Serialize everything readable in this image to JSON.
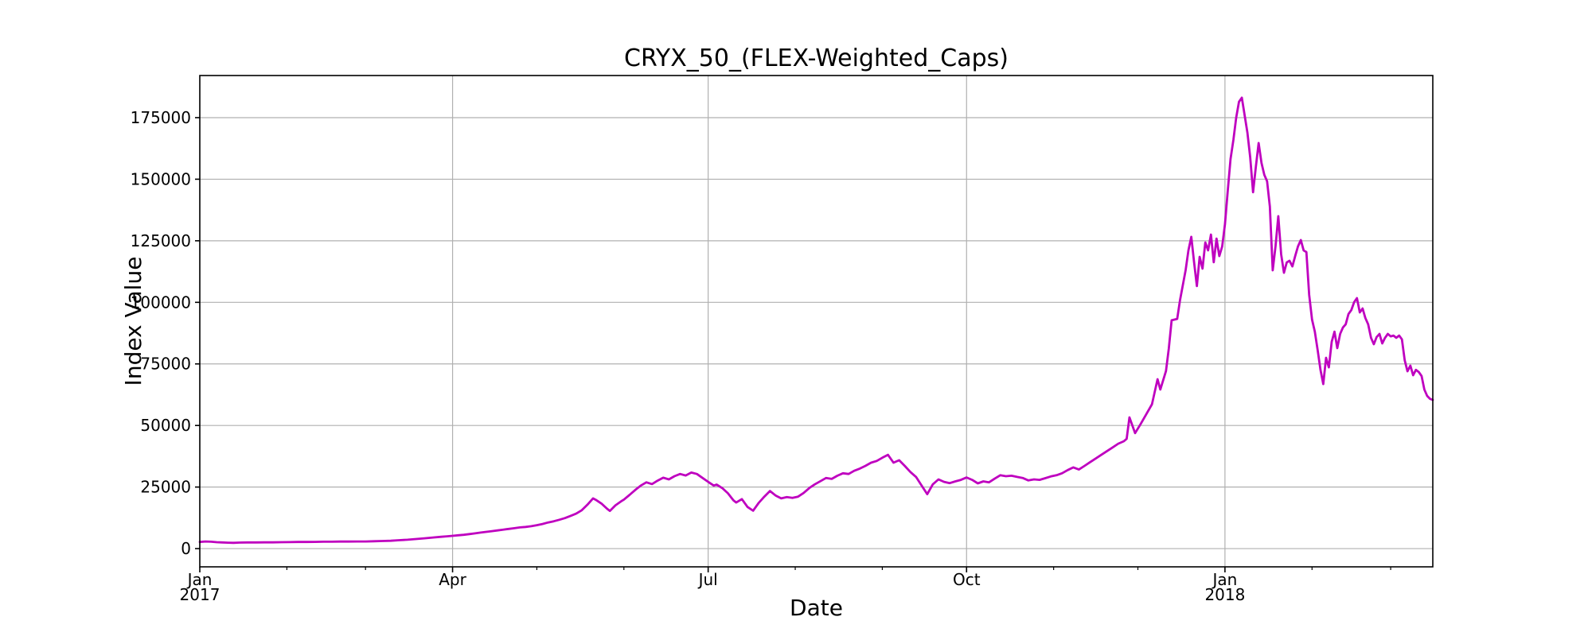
{
  "figure": {
    "title": "CRYX_50_(FLEX-Weighted_Caps)",
    "xlabel": "Date",
    "ylabel": "Index Value"
  },
  "chart_data": {
    "type": "line",
    "title": "CRYX_50_(FLEX-Weighted_Caps)",
    "xlabel": "Date",
    "ylabel": "Index Value",
    "grid": true,
    "legend": "none",
    "background": "#ffffff",
    "grid_color": "#b0b0b0",
    "spine_color": "#000000",
    "x_unit": "days since 2017-01-01",
    "xlim": [
      0,
      439
    ],
    "ylim": [
      -7400,
      192100
    ],
    "y_ticks": [
      {
        "value": 0,
        "label": "0"
      },
      {
        "value": 25000,
        "label": "25000"
      },
      {
        "value": 50000,
        "label": "50000"
      },
      {
        "value": 75000,
        "label": "75000"
      },
      {
        "value": 100000,
        "label": "100000"
      },
      {
        "value": 125000,
        "label": "125000"
      },
      {
        "value": 150000,
        "label": "150000"
      },
      {
        "value": 175000,
        "label": "175000"
      }
    ],
    "x_major_ticks": [
      {
        "day": 0,
        "label": "Jan",
        "sublabel": "2017"
      },
      {
        "day": 90,
        "label": "Apr",
        "sublabel": ""
      },
      {
        "day": 181,
        "label": "Jul",
        "sublabel": ""
      },
      {
        "day": 273,
        "label": "Oct",
        "sublabel": ""
      },
      {
        "day": 365,
        "label": "Jan",
        "sublabel": "2018"
      }
    ],
    "x_minor_ticks": [
      31,
      59,
      120,
      151,
      212,
      243,
      304,
      334,
      396,
      424
    ],
    "series": [
      {
        "name": "CRYX_50",
        "color": "#bf00bf",
        "points": [
          [
            0,
            2700
          ],
          [
            2,
            2900
          ],
          [
            4,
            2800
          ],
          [
            6,
            2600
          ],
          [
            8,
            2500
          ],
          [
            10,
            2400
          ],
          [
            12,
            2350
          ],
          [
            14,
            2450
          ],
          [
            17,
            2500
          ],
          [
            20,
            2500
          ],
          [
            23,
            2550
          ],
          [
            26,
            2550
          ],
          [
            29,
            2600
          ],
          [
            32,
            2650
          ],
          [
            35,
            2700
          ],
          [
            38,
            2700
          ],
          [
            41,
            2750
          ],
          [
            44,
            2800
          ],
          [
            47,
            2800
          ],
          [
            50,
            2850
          ],
          [
            53,
            2850
          ],
          [
            56,
            2900
          ],
          [
            59,
            2900
          ],
          [
            62,
            3000
          ],
          [
            65,
            3100
          ],
          [
            68,
            3200
          ],
          [
            71,
            3400
          ],
          [
            74,
            3600
          ],
          [
            77,
            3900
          ],
          [
            80,
            4200
          ],
          [
            83,
            4500
          ],
          [
            86,
            4800
          ],
          [
            88,
            5000
          ],
          [
            90,
            5200
          ],
          [
            92,
            5400
          ],
          [
            94,
            5600
          ],
          [
            96,
            5900
          ],
          [
            98,
            6200
          ],
          [
            100,
            6500
          ],
          [
            102,
            6800
          ],
          [
            104,
            7100
          ],
          [
            106,
            7400
          ],
          [
            108,
            7700
          ],
          [
            110,
            8000
          ],
          [
            112,
            8300
          ],
          [
            114,
            8600
          ],
          [
            116,
            8800
          ],
          [
            118,
            9100
          ],
          [
            120,
            9500
          ],
          [
            122,
            10000
          ],
          [
            124,
            10600
          ],
          [
            126,
            11100
          ],
          [
            128,
            11700
          ],
          [
            130,
            12400
          ],
          [
            132,
            13300
          ],
          [
            134,
            14200
          ],
          [
            136,
            15600
          ],
          [
            138,
            17800
          ],
          [
            140,
            20400
          ],
          [
            141,
            19800
          ],
          [
            143,
            18300
          ],
          [
            145,
            16200
          ],
          [
            146,
            15300
          ],
          [
            148,
            17600
          ],
          [
            150,
            19200
          ],
          [
            151,
            19900
          ],
          [
            153,
            21800
          ],
          [
            155,
            23800
          ],
          [
            157,
            25600
          ],
          [
            159,
            26900
          ],
          [
            161,
            26200
          ],
          [
            163,
            27600
          ],
          [
            165,
            28800
          ],
          [
            167,
            28100
          ],
          [
            169,
            29400
          ],
          [
            171,
            30300
          ],
          [
            173,
            29700
          ],
          [
            175,
            30900
          ],
          [
            177,
            30300
          ],
          [
            179,
            28700
          ],
          [
            181,
            27100
          ],
          [
            183,
            25600
          ],
          [
            184,
            26000
          ],
          [
            186,
            24600
          ],
          [
            188,
            22500
          ],
          [
            190,
            19600
          ],
          [
            191,
            18700
          ],
          [
            193,
            20100
          ],
          [
            195,
            16900
          ],
          [
            197,
            15400
          ],
          [
            199,
            18600
          ],
          [
            201,
            21100
          ],
          [
            203,
            23400
          ],
          [
            205,
            21600
          ],
          [
            207,
            20400
          ],
          [
            209,
            20900
          ],
          [
            211,
            20600
          ],
          [
            213,
            21100
          ],
          [
            215,
            22600
          ],
          [
            217,
            24600
          ],
          [
            219,
            26100
          ],
          [
            221,
            27400
          ],
          [
            223,
            28700
          ],
          [
            225,
            28300
          ],
          [
            227,
            29600
          ],
          [
            229,
            30600
          ],
          [
            231,
            30300
          ],
          [
            233,
            31600
          ],
          [
            235,
            32500
          ],
          [
            237,
            33600
          ],
          [
            239,
            34900
          ],
          [
            241,
            35600
          ],
          [
            243,
            36900
          ],
          [
            245,
            38100
          ],
          [
            247,
            34900
          ],
          [
            249,
            35900
          ],
          [
            251,
            33600
          ],
          [
            253,
            31100
          ],
          [
            255,
            29100
          ],
          [
            257,
            25600
          ],
          [
            259,
            22100
          ],
          [
            261,
            26100
          ],
          [
            263,
            28100
          ],
          [
            265,
            27100
          ],
          [
            267,
            26600
          ],
          [
            269,
            27300
          ],
          [
            271,
            27900
          ],
          [
            273,
            28900
          ],
          [
            275,
            27900
          ],
          [
            277,
            26500
          ],
          [
            279,
            27300
          ],
          [
            281,
            26900
          ],
          [
            283,
            28400
          ],
          [
            285,
            29800
          ],
          [
            287,
            29400
          ],
          [
            289,
            29600
          ],
          [
            291,
            29100
          ],
          [
            293,
            28700
          ],
          [
            295,
            27700
          ],
          [
            297,
            28100
          ],
          [
            299,
            27900
          ],
          [
            301,
            28600
          ],
          [
            303,
            29300
          ],
          [
            305,
            29800
          ],
          [
            307,
            30600
          ],
          [
            309,
            31900
          ],
          [
            311,
            33000
          ],
          [
            313,
            32100
          ],
          [
            315,
            33600
          ],
          [
            317,
            35100
          ],
          [
            319,
            36600
          ],
          [
            321,
            38100
          ],
          [
            323,
            39600
          ],
          [
            325,
            41100
          ],
          [
            327,
            42600
          ],
          [
            329,
            43600
          ],
          [
            330,
            44600
          ],
          [
            331,
            53300
          ],
          [
            333,
            46900
          ],
          [
            335,
            50600
          ],
          [
            337,
            54600
          ],
          [
            339,
            58600
          ],
          [
            341,
            68800
          ],
          [
            342,
            64600
          ],
          [
            344,
            72100
          ],
          [
            345,
            81100
          ],
          [
            346,
            92700
          ],
          [
            348,
            93300
          ],
          [
            349,
            100800
          ],
          [
            351,
            113100
          ],
          [
            352,
            121100
          ],
          [
            353,
            126600
          ],
          [
            354,
            116300
          ],
          [
            355,
            106600
          ],
          [
            356,
            118500
          ],
          [
            357,
            113700
          ],
          [
            358,
            124300
          ],
          [
            359,
            121100
          ],
          [
            360,
            127500
          ],
          [
            361,
            116300
          ],
          [
            362,
            125900
          ],
          [
            363,
            118800
          ],
          [
            364,
            122700
          ],
          [
            365,
            131700
          ],
          [
            366,
            145300
          ],
          [
            367,
            158200
          ],
          [
            368,
            166000
          ],
          [
            369,
            175000
          ],
          [
            370,
            181400
          ],
          [
            371,
            183100
          ],
          [
            372,
            176000
          ],
          [
            373,
            168900
          ],
          [
            374,
            158900
          ],
          [
            375,
            144700
          ],
          [
            376,
            155000
          ],
          [
            377,
            164700
          ],
          [
            378,
            156600
          ],
          [
            379,
            151800
          ],
          [
            380,
            149200
          ],
          [
            381,
            138900
          ],
          [
            382,
            113000
          ],
          [
            383,
            122700
          ],
          [
            384,
            135000
          ],
          [
            385,
            119500
          ],
          [
            386,
            112000
          ],
          [
            387,
            116200
          ],
          [
            388,
            116900
          ],
          [
            389,
            114600
          ],
          [
            390,
            118800
          ],
          [
            391,
            122700
          ],
          [
            392,
            125300
          ],
          [
            393,
            121100
          ],
          [
            394,
            120400
          ],
          [
            395,
            103000
          ],
          [
            396,
            93000
          ],
          [
            397,
            88100
          ],
          [
            398,
            80700
          ],
          [
            399,
            72600
          ],
          [
            400,
            66800
          ],
          [
            401,
            77500
          ],
          [
            402,
            73600
          ],
          [
            403,
            84000
          ],
          [
            404,
            88100
          ],
          [
            405,
            81400
          ],
          [
            406,
            87200
          ],
          [
            407,
            89800
          ],
          [
            408,
            91100
          ],
          [
            409,
            95300
          ],
          [
            410,
            96900
          ],
          [
            411,
            100100
          ],
          [
            412,
            101700
          ],
          [
            413,
            95900
          ],
          [
            414,
            97500
          ],
          [
            415,
            93600
          ],
          [
            416,
            91100
          ],
          [
            417,
            85600
          ],
          [
            418,
            83000
          ],
          [
            419,
            85900
          ],
          [
            420,
            87200
          ],
          [
            421,
            83300
          ],
          [
            422,
            85600
          ],
          [
            423,
            87200
          ],
          [
            424,
            86200
          ],
          [
            425,
            86500
          ],
          [
            426,
            85600
          ],
          [
            427,
            86500
          ],
          [
            428,
            85000
          ],
          [
            429,
            76500
          ],
          [
            430,
            72000
          ],
          [
            431,
            74300
          ],
          [
            432,
            70400
          ],
          [
            433,
            72600
          ],
          [
            434,
            71700
          ],
          [
            435,
            70100
          ],
          [
            436,
            64600
          ],
          [
            437,
            62000
          ],
          [
            438,
            60800
          ],
          [
            439,
            60400
          ]
        ]
      }
    ]
  }
}
